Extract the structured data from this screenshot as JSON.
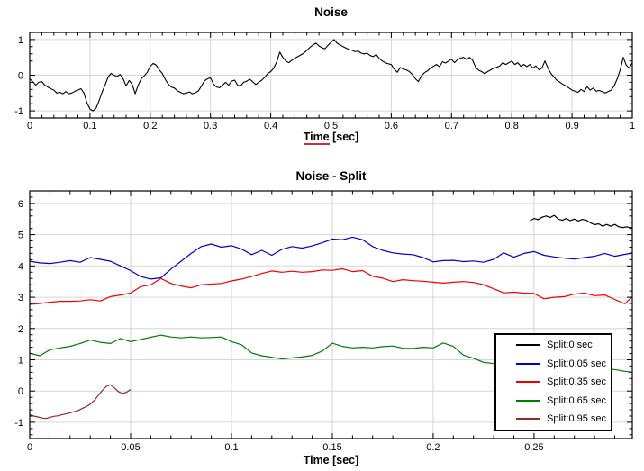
{
  "page": {
    "background": "#ffffff"
  },
  "chart_data": [
    {
      "type": "line",
      "title": "Noise",
      "xlabel": "Time [sec]",
      "xlabel_parts": {
        "underlined": "Time",
        "plain": " [sec]"
      },
      "underline_color": "#c83232",
      "xlim": [
        0,
        1
      ],
      "ylim": [
        -1.2,
        1.2
      ],
      "x_tick_values": [
        0,
        0.1,
        0.2,
        0.3,
        0.4,
        0.5,
        0.6,
        0.7,
        0.8,
        0.9,
        1
      ],
      "x_tick_labels": [
        "0",
        "0.1",
        "0.2",
        "0.3",
        "0.4",
        "0.5",
        "0.6",
        "0.7",
        "0.8",
        "0.9",
        "1"
      ],
      "x_minor_step": 0.02,
      "y_tick_values": [
        -1,
        0,
        1
      ],
      "y_tick_labels": [
        "-1",
        "0",
        "1"
      ],
      "y_minor_step": 0.2,
      "grid": true,
      "grid_color": "#d6d6d6",
      "legend": null,
      "series": [
        {
          "name": "Noise",
          "color": "#000000",
          "width": 1.1,
          "t0": 0,
          "dt": 0.005,
          "values": [
            -0.1,
            -0.18,
            -0.28,
            -0.2,
            -0.18,
            -0.28,
            -0.33,
            -0.38,
            -0.42,
            -0.5,
            -0.48,
            -0.52,
            -0.46,
            -0.52,
            -0.5,
            -0.45,
            -0.42,
            -0.38,
            -0.5,
            -0.78,
            -0.95,
            -1.0,
            -0.93,
            -0.72,
            -0.48,
            -0.28,
            -0.05,
            0.05,
            0.0,
            -0.04,
            0.02,
            -0.1,
            -0.3,
            -0.15,
            -0.25,
            -0.52,
            -0.28,
            -0.1,
            -0.02,
            0.08,
            0.25,
            0.33,
            0.28,
            0.15,
            0.05,
            -0.12,
            -0.25,
            -0.33,
            -0.36,
            -0.44,
            -0.48,
            -0.52,
            -0.5,
            -0.47,
            -0.52,
            -0.49,
            -0.44,
            -0.3,
            -0.16,
            -0.1,
            -0.07,
            -0.25,
            -0.33,
            -0.35,
            -0.28,
            -0.2,
            -0.28,
            -0.17,
            -0.14,
            -0.28,
            -0.3,
            -0.2,
            -0.17,
            -0.11,
            -0.18,
            -0.26,
            -0.2,
            -0.14,
            -0.06,
            0.05,
            0.1,
            0.2,
            0.38,
            0.65,
            0.5,
            0.4,
            0.35,
            0.42,
            0.48,
            0.52,
            0.57,
            0.62,
            0.7,
            0.78,
            0.85,
            0.9,
            0.82,
            0.77,
            0.74,
            0.84,
            0.92,
            1.0,
            0.9,
            0.85,
            0.8,
            0.76,
            0.72,
            0.7,
            0.66,
            0.68,
            0.62,
            0.6,
            0.62,
            0.55,
            0.52,
            0.58,
            0.47,
            0.4,
            0.35,
            0.32,
            0.3,
            0.17,
            0.08,
            0.22,
            0.17,
            0.15,
            0.1,
            0.02,
            -0.1,
            -0.18,
            -0.02,
            0.07,
            0.12,
            0.2,
            0.25,
            0.3,
            0.24,
            0.38,
            0.34,
            0.4,
            0.45,
            0.35,
            0.44,
            0.48,
            0.5,
            0.44,
            0.5,
            0.42,
            0.22,
            0.14,
            0.1,
            0.04,
            0.1,
            0.15,
            0.2,
            0.22,
            0.26,
            0.35,
            0.3,
            0.35,
            0.4,
            0.3,
            0.35,
            0.25,
            0.3,
            0.24,
            0.3,
            0.2,
            0.26,
            0.15,
            0.2,
            0.4,
            0.2,
            0.05,
            -0.05,
            -0.15,
            -0.2,
            -0.26,
            -0.3,
            -0.36,
            -0.42,
            -0.45,
            -0.48,
            -0.4,
            -0.46,
            -0.32,
            -0.42,
            -0.36,
            -0.45,
            -0.43,
            -0.46,
            -0.5,
            -0.46,
            -0.42,
            -0.3,
            -0.1,
            0.15,
            0.5,
            0.28,
            0.2,
            0.35
          ]
        }
      ]
    },
    {
      "type": "line",
      "title": "Noise - Split",
      "xlabel": "Time [sec]",
      "xlim": [
        0,
        0.2987
      ],
      "ylim": [
        -1.52,
        6.4
      ],
      "x_tick_values": [
        0,
        0.05,
        0.1,
        0.15,
        0.2,
        0.25
      ],
      "x_tick_labels": [
        "0",
        "0.05",
        "0.1",
        "0.15",
        "0.2",
        "0.25"
      ],
      "x_minor_step": 0.01,
      "y_tick_values": [
        -1,
        0,
        1,
        2,
        3,
        4,
        5,
        6
      ],
      "y_tick_labels": [
        "-1",
        "0",
        "1",
        "2",
        "3",
        "4",
        "5",
        "6"
      ],
      "y_minor_step": 0.2,
      "grid": true,
      "grid_color": "#d6d6d6",
      "legend": {
        "position": "bottom-right",
        "entries": [
          "Split:0 sec",
          "Split:0.05 sec",
          "Split:0.35 sec",
          "Split:0.65 sec",
          "Split:0.95 sec"
        ]
      },
      "series": [
        {
          "name": "Split:0 sec",
          "color": "#000000",
          "width": 1.2,
          "t0": 0.248,
          "dt": 0.002,
          "values": [
            5.45,
            5.52,
            5.48,
            5.56,
            5.6,
            5.55,
            5.62,
            5.5,
            5.46,
            5.52,
            5.45,
            5.5,
            5.44,
            5.49,
            5.46,
            5.38,
            5.32,
            5.35,
            5.27,
            5.33,
            5.27,
            5.33,
            5.25,
            5.23,
            5.25,
            5.22,
            5.27
          ]
        },
        {
          "name": "Split:0.05 sec",
          "color": "#0000cc",
          "width": 1.2,
          "t0": 0,
          "dt": 0.005,
          "values": [
            4.15,
            4.1,
            4.08,
            4.12,
            4.17,
            4.12,
            4.27,
            4.21,
            4.15,
            4.0,
            3.85,
            3.66,
            3.58,
            3.62,
            3.9,
            4.15,
            4.4,
            4.62,
            4.7,
            4.6,
            4.65,
            4.54,
            4.36,
            4.5,
            4.34,
            4.53,
            4.62,
            4.57,
            4.64,
            4.74,
            4.86,
            4.84,
            4.92,
            4.84,
            4.62,
            4.5,
            4.42,
            4.38,
            4.36,
            4.27,
            4.13,
            4.17,
            4.18,
            4.14,
            4.16,
            4.12,
            4.21,
            4.42,
            4.28,
            4.4,
            4.46,
            4.34,
            4.29,
            4.25,
            4.22,
            4.27,
            4.31,
            4.4,
            4.31,
            4.37,
            4.43
          ]
        },
        {
          "name": "Split:0.35 sec",
          "color": "#ee0000",
          "width": 1.2,
          "t0": 0,
          "dt": 0.005,
          "values": [
            2.77,
            2.8,
            2.84,
            2.87,
            2.87,
            2.88,
            2.92,
            2.88,
            3.02,
            3.07,
            3.13,
            3.34,
            3.4,
            3.6,
            3.44,
            3.36,
            3.3,
            3.4,
            3.42,
            3.44,
            3.52,
            3.58,
            3.66,
            3.76,
            3.84,
            3.8,
            3.83,
            3.8,
            3.82,
            3.87,
            3.86,
            3.91,
            3.82,
            3.85,
            3.67,
            3.61,
            3.5,
            3.56,
            3.53,
            3.51,
            3.48,
            3.45,
            3.48,
            3.5,
            3.47,
            3.4,
            3.27,
            3.14,
            3.16,
            3.13,
            3.12,
            2.95,
            3.0,
            3.02,
            3.1,
            3.13,
            3.05,
            3.07,
            2.93,
            2.79,
            3.09
          ]
        },
        {
          "name": "Split:0.65 sec",
          "color": "#007a00",
          "width": 1.2,
          "t0": 0,
          "dt": 0.005,
          "values": [
            1.21,
            1.13,
            1.32,
            1.38,
            1.43,
            1.52,
            1.63,
            1.56,
            1.52,
            1.68,
            1.58,
            1.65,
            1.72,
            1.79,
            1.73,
            1.7,
            1.73,
            1.7,
            1.71,
            1.73,
            1.58,
            1.48,
            1.22,
            1.13,
            1.08,
            1.03,
            1.06,
            1.09,
            1.14,
            1.28,
            1.53,
            1.43,
            1.38,
            1.4,
            1.38,
            1.42,
            1.44,
            1.37,
            1.36,
            1.4,
            1.38,
            1.54,
            1.43,
            1.15,
            1.05,
            0.92,
            0.88,
            0.84,
            0.81,
            0.78,
            0.75,
            0.73,
            0.71,
            0.7,
            0.69,
            0.68,
            0.67,
            0.7,
            0.69,
            0.63,
            0.59
          ]
        },
        {
          "name": "Split:0.95 sec",
          "color": "#8b2a2a",
          "width": 1.2,
          "t0": 0,
          "dt": 0.002,
          "values": [
            -0.76,
            -0.8,
            -0.83,
            -0.86,
            -0.88,
            -0.84,
            -0.81,
            -0.79,
            -0.76,
            -0.73,
            -0.7,
            -0.66,
            -0.62,
            -0.56,
            -0.5,
            -0.42,
            -0.3,
            -0.14,
            0.02,
            0.15,
            0.2,
            0.1,
            -0.02,
            -0.08,
            -0.04,
            0.05
          ]
        }
      ]
    }
  ]
}
